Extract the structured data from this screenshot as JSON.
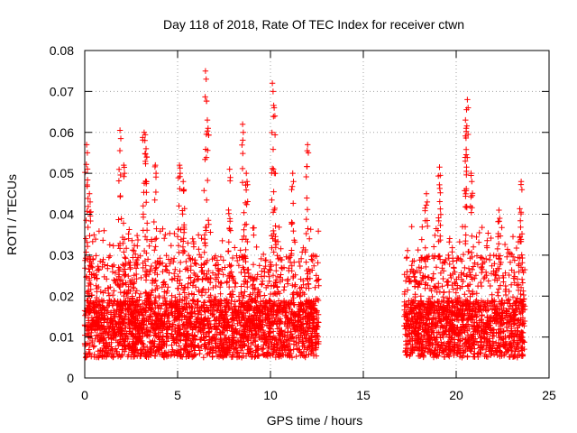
{
  "chart_data": {
    "type": "scatter",
    "title": "Day 118 of 2018, Rate Of TEC Index for receiver ctwn",
    "xlabel": "GPS time / hours",
    "ylabel": "ROTI / TECUs",
    "xlim": [
      0,
      25
    ],
    "ylim": [
      0,
      0.08
    ],
    "x_ticks": [
      0,
      5,
      10,
      15,
      20,
      25
    ],
    "x_tick_labels": [
      "0",
      "5",
      "10",
      "15",
      "20",
      "25"
    ],
    "y_ticks": [
      0,
      0.01,
      0.02,
      0.03,
      0.04,
      0.05,
      0.06,
      0.07,
      0.08
    ],
    "y_tick_labels": [
      "0",
      "0.01",
      "0.02",
      "0.03",
      "0.04",
      "0.05",
      "0.06",
      "0.07",
      "0.08"
    ],
    "grid": true,
    "marker": "+",
    "color": "#ff0000",
    "series": [
      {
        "name": "ROTI",
        "segments": [
          {
            "x_start": 0.0,
            "x_end": 12.6
          },
          {
            "x_start": 17.2,
            "x_end": 23.7
          }
        ],
        "peaks": [
          {
            "x": 0.1,
            "y": 0.057
          },
          {
            "x": 0.25,
            "y": 0.045
          },
          {
            "x": 1.9,
            "y": 0.0605
          },
          {
            "x": 2.1,
            "y": 0.052
          },
          {
            "x": 3.2,
            "y": 0.06
          },
          {
            "x": 3.3,
            "y": 0.056
          },
          {
            "x": 3.8,
            "y": 0.052
          },
          {
            "x": 5.1,
            "y": 0.052
          },
          {
            "x": 5.3,
            "y": 0.048
          },
          {
            "x": 6.5,
            "y": 0.075
          },
          {
            "x": 6.6,
            "y": 0.063
          },
          {
            "x": 7.8,
            "y": 0.051
          },
          {
            "x": 8.5,
            "y": 0.062
          },
          {
            "x": 8.7,
            "y": 0.05
          },
          {
            "x": 10.1,
            "y": 0.072
          },
          {
            "x": 10.2,
            "y": 0.066
          },
          {
            "x": 11.2,
            "y": 0.05
          },
          {
            "x": 12.0,
            "y": 0.057
          },
          {
            "x": 18.4,
            "y": 0.045
          },
          {
            "x": 19.1,
            "y": 0.0515
          },
          {
            "x": 20.6,
            "y": 0.068
          },
          {
            "x": 20.5,
            "y": 0.063
          },
          {
            "x": 20.8,
            "y": 0.05
          },
          {
            "x": 22.3,
            "y": 0.041
          },
          {
            "x": 23.5,
            "y": 0.048
          }
        ],
        "baseline_range": [
          0.003,
          0.03
        ]
      }
    ]
  }
}
